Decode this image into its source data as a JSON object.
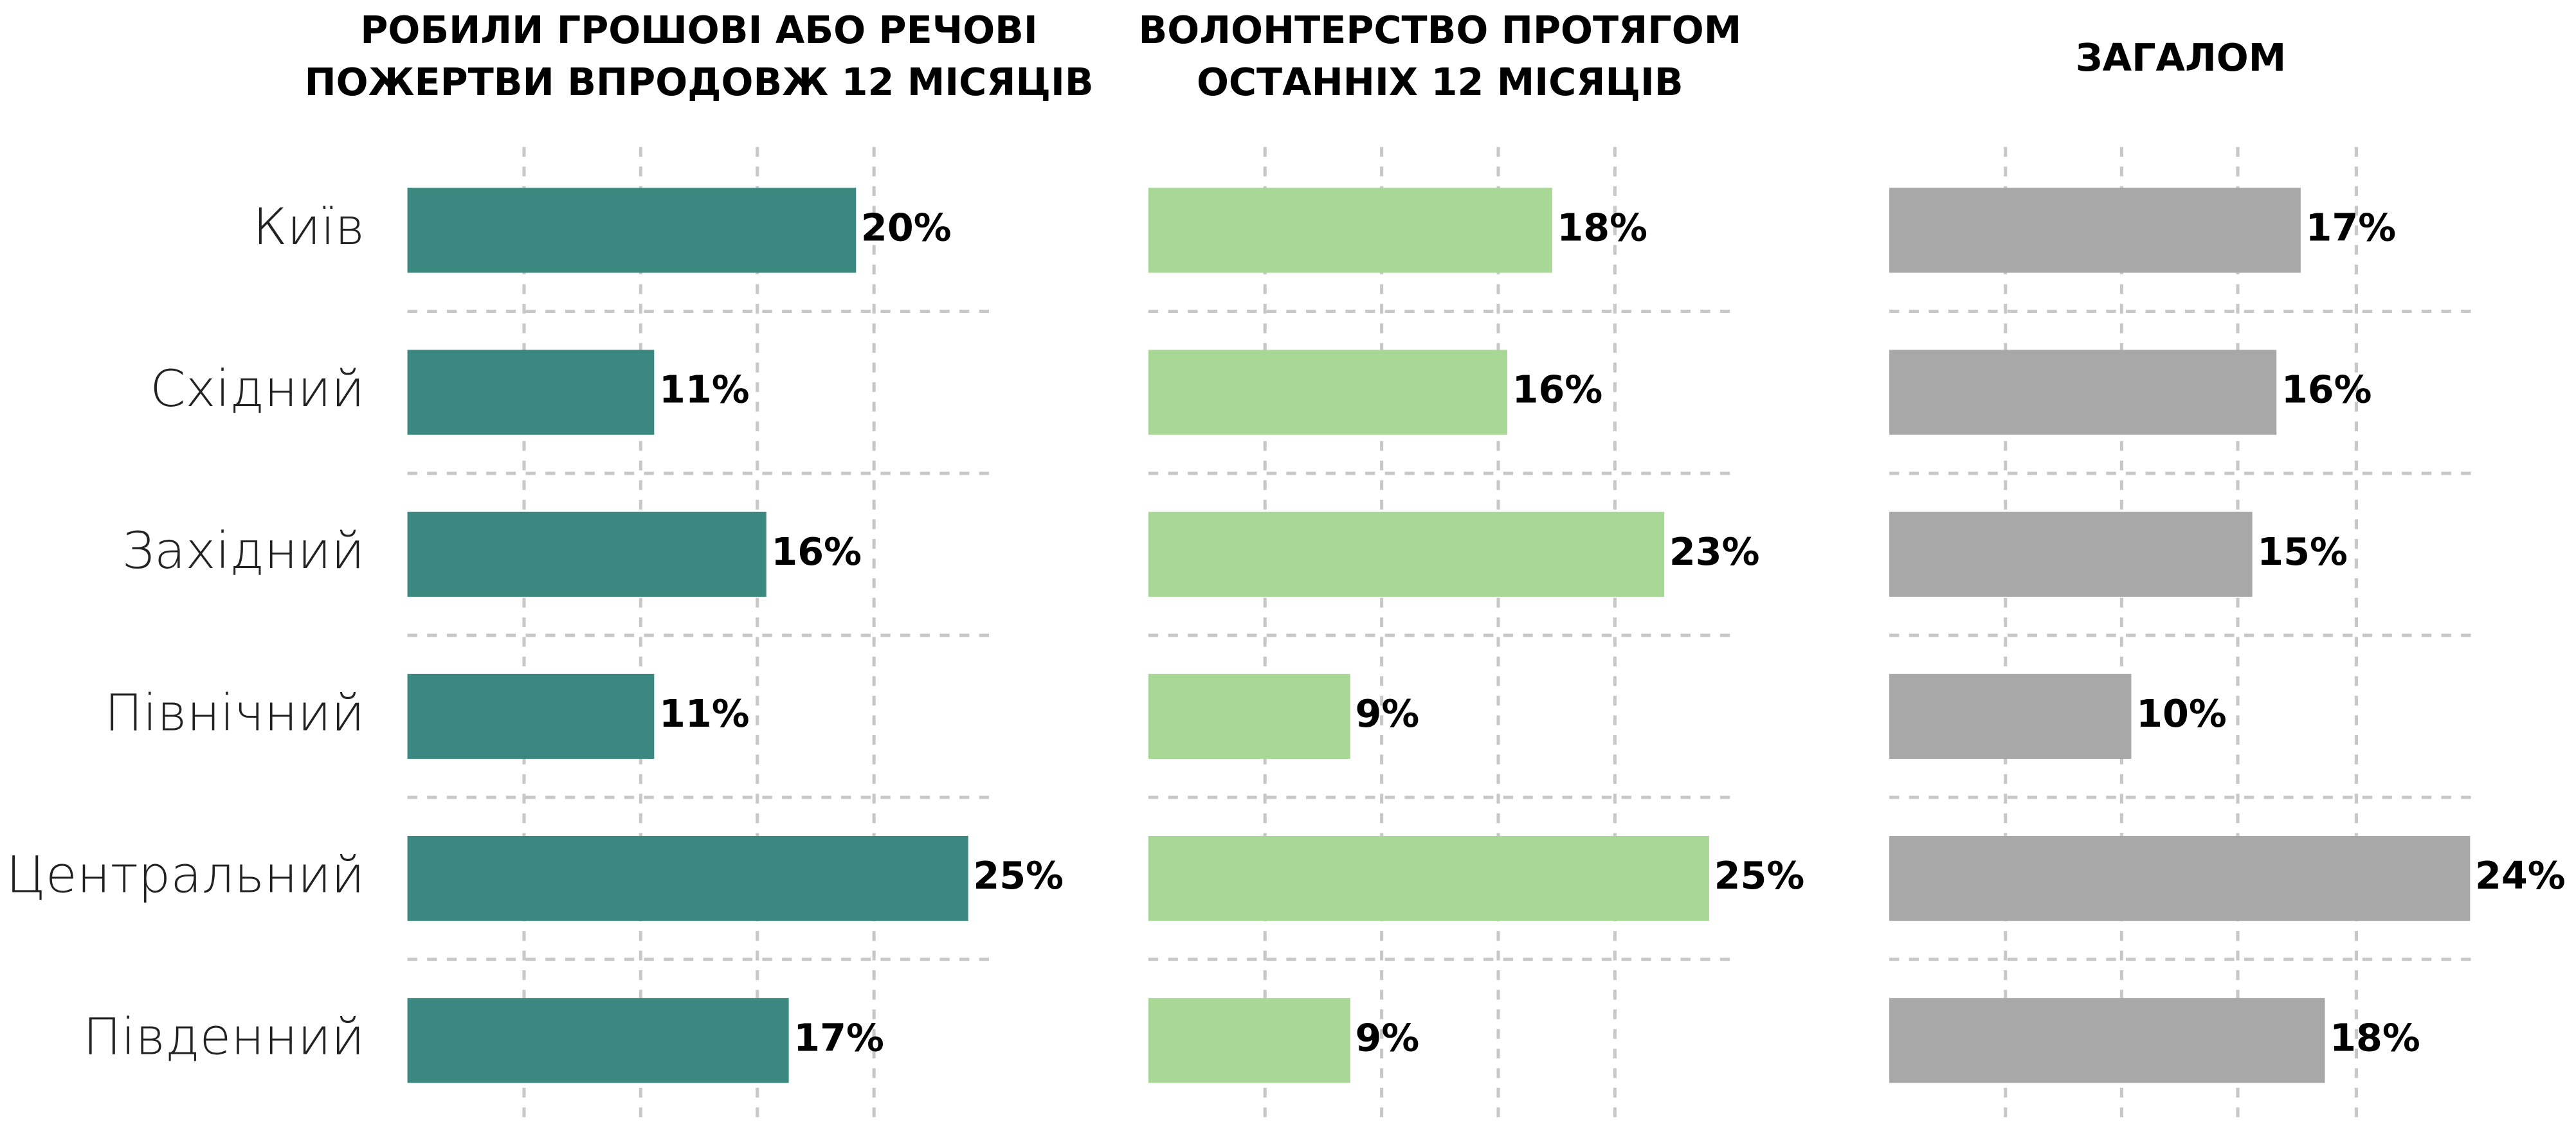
{
  "chart_data": [
    {
      "type": "bar",
      "orientation": "horizontal",
      "title": "РОБИЛИ ГРОШОВІ АБО РЕЧОВІ\nПОЖЕРТВИ ВПРОДОВЖ 12 МІСЯЦІВ",
      "categories": [
        "Київ",
        "Східний",
        "Західний",
        "Північний",
        "Центральний",
        "Південний"
      ],
      "values": [
        20,
        11,
        16,
        11,
        25,
        17
      ],
      "value_labels": [
        "20%",
        "11%",
        "16%",
        "11%",
        "25%",
        "17%"
      ],
      "color": "#3a8880",
      "xlim": [
        0,
        26
      ],
      "xticks": [
        5.2,
        10.4,
        15.6,
        20.8
      ],
      "grid": true
    },
    {
      "type": "bar",
      "orientation": "horizontal",
      "title": "ВОЛОНТЕРСТВО ПРОТЯГОМ\nОСТАННІХ 12 МІСЯЦІВ",
      "values": [
        18,
        16,
        23,
        9,
        25,
        9
      ],
      "value_labels": [
        "18%",
        "16%",
        "23%",
        "9%",
        "25%",
        "9%"
      ],
      "color": "#a8d796",
      "xlim": [
        0,
        26
      ],
      "xticks": [
        5.2,
        10.4,
        15.6,
        20.8
      ],
      "grid": true
    },
    {
      "type": "bar",
      "orientation": "horizontal",
      "title": "ЗАГАЛОМ",
      "values": [
        17,
        16,
        15,
        10,
        24,
        18
      ],
      "value_labels": [
        "17%",
        "16%",
        "15%",
        "10%",
        "24%",
        "18%"
      ],
      "color": "#a8a8a8",
      "xlim": [
        0,
        24.1
      ],
      "xticks": [
        4.8,
        9.6,
        14.4,
        19.3
      ],
      "grid": true
    }
  ]
}
